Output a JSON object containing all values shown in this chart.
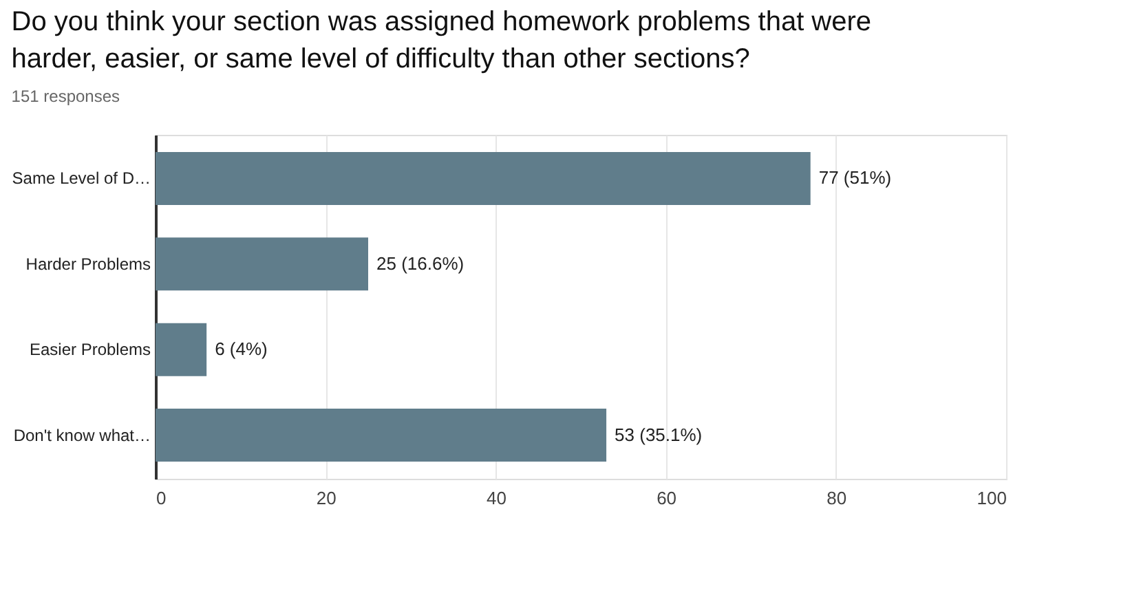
{
  "chart_data": {
    "type": "bar",
    "orientation": "horizontal",
    "title": "Do you think your section was assigned homework problems that were harder, easier, or same level of difficulty than other sections?",
    "subtitle": "151 responses",
    "categories": [
      "Same Level of D…",
      "Harder Problems",
      "Easier Problems",
      "Don't know what…"
    ],
    "values": [
      77,
      25,
      6,
      53
    ],
    "value_labels": [
      "77 (51%)",
      "25 (16.6%)",
      "6 (4%)",
      "53 (35.1%)"
    ],
    "color": "#607d8b",
    "xlim": [
      0,
      100
    ],
    "xticks": [
      0,
      20,
      40,
      60,
      80,
      100
    ],
    "grid": "x"
  }
}
